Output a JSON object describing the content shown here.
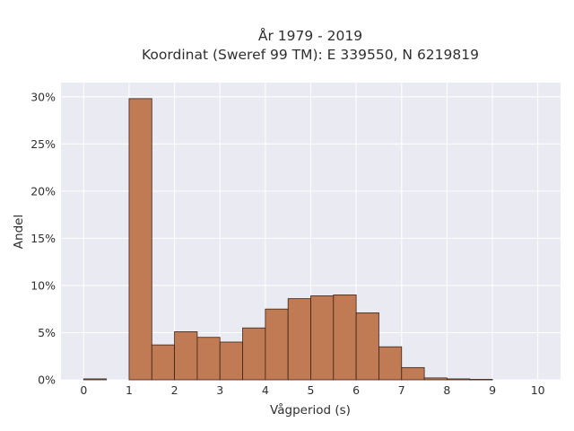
{
  "chart_data": {
    "type": "bar",
    "title_line1": "År 1979 - 2019",
    "title_line2": "Koordinat (Sweref 99 TM): E 339550, N 6219819",
    "xlabel": "Vågperiod (s)",
    "ylabel": "Andel",
    "xlim": [
      -0.5,
      10.5
    ],
    "ylim": [
      0,
      31.5
    ],
    "x_ticks": [
      0,
      1,
      2,
      3,
      4,
      5,
      6,
      7,
      8,
      9,
      10
    ],
    "y_ticks": [
      0,
      5,
      10,
      15,
      20,
      25,
      30
    ],
    "y_tick_labels": [
      "0%",
      "5%",
      "10%",
      "15%",
      "20%",
      "25%",
      "30%"
    ],
    "bin_width": 0.5,
    "bins": [
      {
        "x0": 0.0,
        "value": 0.1
      },
      {
        "x0": 1.0,
        "value": 29.8
      },
      {
        "x0": 1.5,
        "value": 3.7
      },
      {
        "x0": 2.0,
        "value": 5.1
      },
      {
        "x0": 2.5,
        "value": 4.5
      },
      {
        "x0": 3.0,
        "value": 4.0
      },
      {
        "x0": 3.5,
        "value": 5.5
      },
      {
        "x0": 4.0,
        "value": 7.5
      },
      {
        "x0": 4.5,
        "value": 8.6
      },
      {
        "x0": 5.0,
        "value": 8.9
      },
      {
        "x0": 5.5,
        "value": 9.0
      },
      {
        "x0": 6.0,
        "value": 7.1
      },
      {
        "x0": 6.5,
        "value": 3.5
      },
      {
        "x0": 7.0,
        "value": 1.3
      },
      {
        "x0": 7.5,
        "value": 0.2
      },
      {
        "x0": 8.0,
        "value": 0.1
      },
      {
        "x0": 8.5,
        "value": 0.05
      }
    ],
    "grid": true,
    "colors": {
      "bar_fill": "#c07a54",
      "bar_edge": "#3b2418",
      "plot_bg": "#eaeaf2",
      "grid": "#ffffff"
    }
  }
}
